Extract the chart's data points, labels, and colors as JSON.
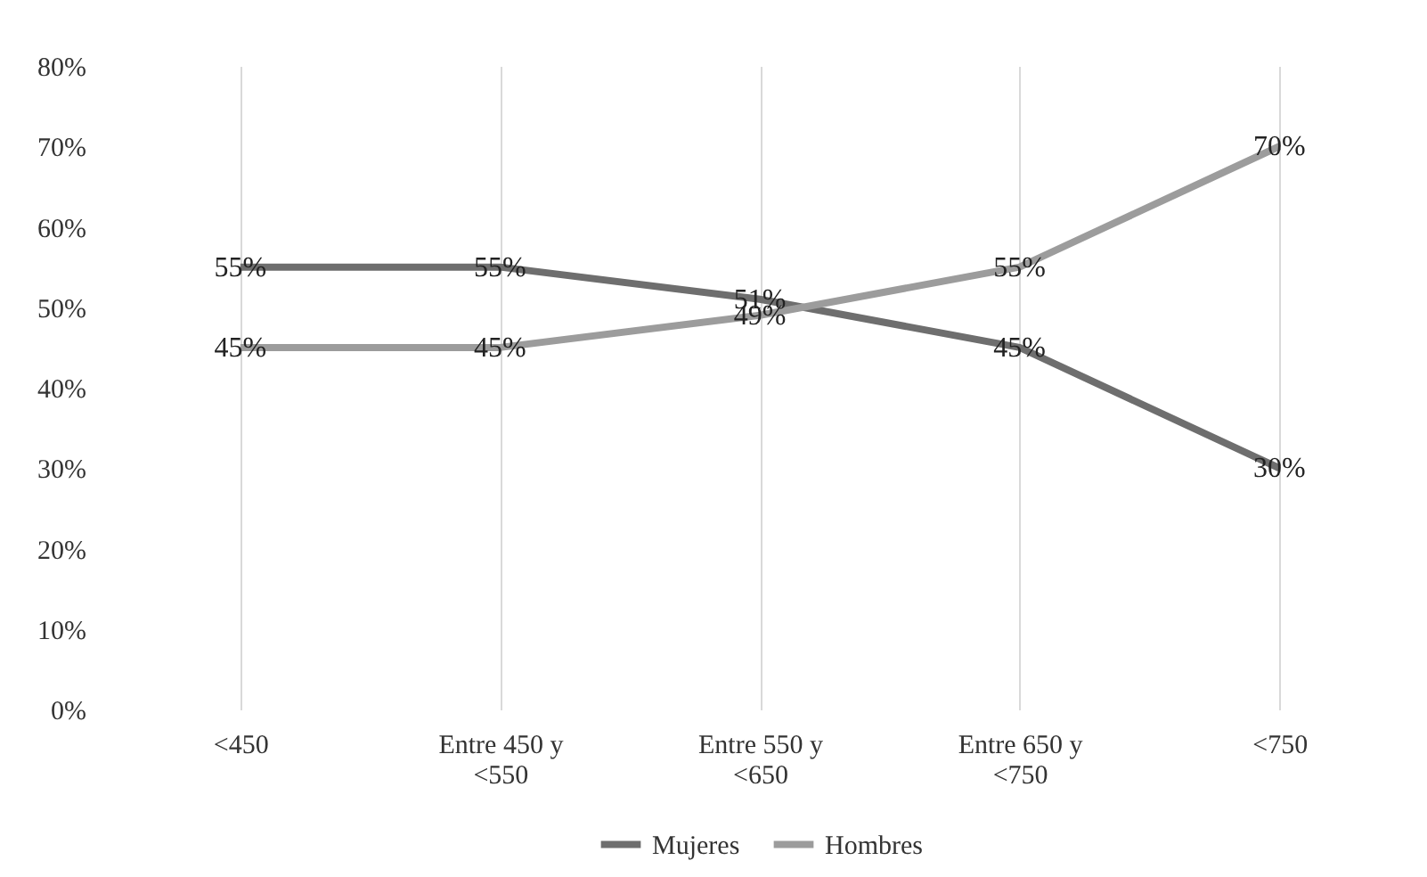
{
  "chart_data": {
    "type": "line",
    "categories": [
      "<450",
      "Entre 450 y <550",
      "Entre 550 y <650",
      "Entre 650 y <750",
      "<750"
    ],
    "series": [
      {
        "name": "Mujeres",
        "color": "#6e6e6e",
        "values": [
          55,
          55,
          51,
          45,
          30
        ],
        "value_labels": [
          "55%",
          "55%",
          "51%",
          "45%",
          "30%"
        ]
      },
      {
        "name": "Hombres",
        "color": "#9c9c9c",
        "values": [
          45,
          45,
          49,
          55,
          70
        ],
        "value_labels": [
          "45%",
          "45%",
          "49%",
          "55%",
          "70%"
        ]
      }
    ],
    "ylim": [
      0,
      80
    ],
    "yticks": [
      {
        "value": 0,
        "label": "0%"
      },
      {
        "value": 10,
        "label": "10%"
      },
      {
        "value": 20,
        "label": "20%"
      },
      {
        "value": 30,
        "label": "30%"
      },
      {
        "value": 40,
        "label": "40%"
      },
      {
        "value": 50,
        "label": "50%"
      },
      {
        "value": 60,
        "label": "60%"
      },
      {
        "value": 70,
        "label": "70%"
      },
      {
        "value": 80,
        "label": "80%"
      }
    ],
    "grid": "x",
    "legend": "bottom",
    "marker": "none",
    "line_style": "solid"
  }
}
